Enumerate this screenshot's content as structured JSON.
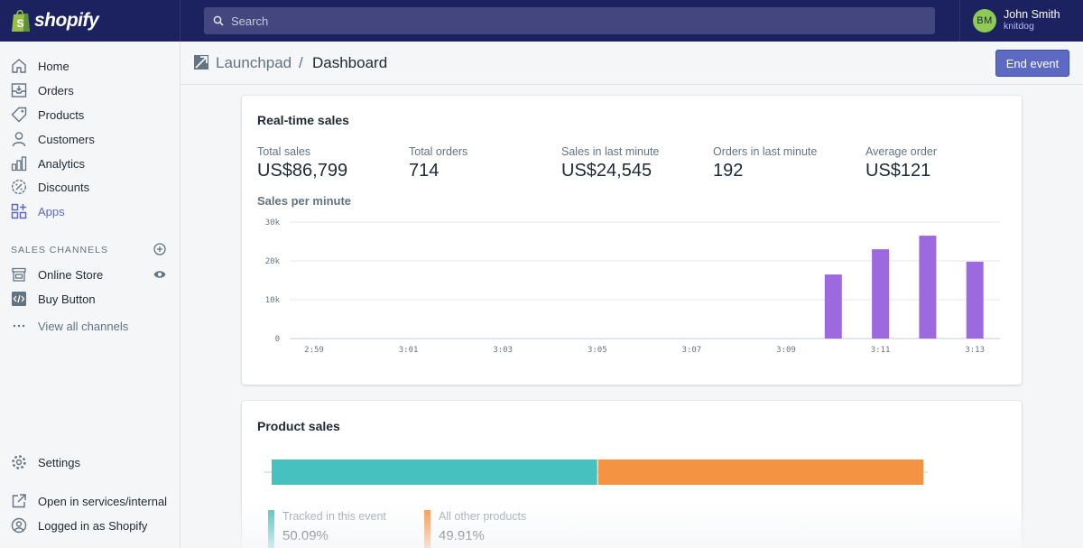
{
  "brand": {
    "name": "shopify"
  },
  "search": {
    "placeholder": "Search"
  },
  "user": {
    "initials": "BM",
    "name": "John Smith",
    "shop": "knitdog"
  },
  "sidebar": {
    "items": [
      {
        "label": "Home",
        "icon": "home-icon"
      },
      {
        "label": "Orders",
        "icon": "orders-icon"
      },
      {
        "label": "Products",
        "icon": "tag-icon"
      },
      {
        "label": "Customers",
        "icon": "customer-icon"
      },
      {
        "label": "Analytics",
        "icon": "analytics-icon"
      },
      {
        "label": "Discounts",
        "icon": "discount-icon"
      },
      {
        "label": "Apps",
        "icon": "apps-icon",
        "active": true
      }
    ],
    "channels_title": "SALES CHANNELS",
    "channels": [
      {
        "label": "Online Store",
        "icon": "store-icon"
      },
      {
        "label": "Buy Button",
        "icon": "buy-button-icon"
      }
    ],
    "view_all": "View all channels",
    "settings": "Settings",
    "open_internal": "Open in services/internal",
    "logged_in": "Logged in as Shopify"
  },
  "header": {
    "breadcrumb": "Launchpad",
    "separator": "/",
    "title": "Dashboard",
    "end_button": "End event"
  },
  "realtime": {
    "title": "Real-time sales",
    "stats": [
      {
        "label": "Total sales",
        "value": "US$86,799"
      },
      {
        "label": "Total orders",
        "value": "714"
      },
      {
        "label": "Sales in last minute",
        "value": "US$24,545"
      },
      {
        "label": "Orders in last minute",
        "value": "192"
      },
      {
        "label": "Average order",
        "value": "US$121"
      }
    ],
    "chart_title": "Sales per minute"
  },
  "chart_data": {
    "type": "bar",
    "title": "Sales per minute",
    "xlabel": "",
    "ylabel": "",
    "ylim": [
      0,
      30000
    ],
    "y_ticks": [
      0,
      10000,
      20000,
      30000
    ],
    "y_tick_labels": [
      "0",
      "10k",
      "20k",
      "30k"
    ],
    "x_tick_labels": [
      "2:59",
      "3:01",
      "3:03",
      "3:05",
      "3:07",
      "3:09",
      "3:11",
      "3:13"
    ],
    "categories": [
      "2:59",
      "3:00",
      "3:01",
      "3:02",
      "3:03",
      "3:04",
      "3:05",
      "3:06",
      "3:07",
      "3:08",
      "3:09",
      "3:10",
      "3:11",
      "3:12",
      "3:13"
    ],
    "values": [
      0,
      0,
      0,
      0,
      0,
      0,
      0,
      0,
      0,
      0,
      0,
      16500,
      23000,
      26500,
      19800
    ],
    "color": "#9c6ade",
    "grid": true
  },
  "product_sales": {
    "title": "Product sales",
    "segments": [
      {
        "label": "Tracked in this event",
        "value": "50.09%",
        "fraction": 0.5009,
        "color": "#47c1bf"
      },
      {
        "label": "All other products",
        "value": "49.91%",
        "fraction": 0.4991,
        "color": "#f49342"
      }
    ]
  }
}
